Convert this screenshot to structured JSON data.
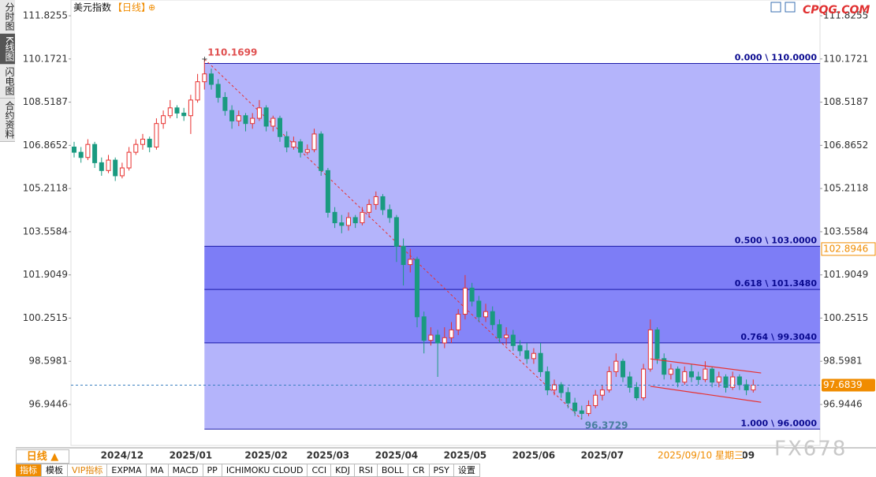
{
  "header": {
    "title": "美元指数",
    "period": "【日线】",
    "icon": "⊕",
    "site": "CPQG.COM",
    "watermark": "FX678"
  },
  "sidebar": [
    "分时图",
    "K线图",
    "闪电图",
    "合约资料"
  ],
  "toolbar": {
    "tab": "日线 ▲",
    "items": [
      "指标",
      "模板",
      "VIP指标",
      "EXPMA",
      "MA",
      "MACD",
      "PP",
      "ICHIMOKU CLOUD",
      "CCI",
      "KDJ",
      "RSI",
      "BOLL",
      "CR",
      "PSY",
      "设置"
    ]
  },
  "chart_data": {
    "type": "candlestick",
    "up_color": "#e8302e",
    "down_color": "#1a9a80",
    "ylim": [
      95.375,
      112.188
    ],
    "yticks": [
      111.8255,
      110.1721,
      108.5187,
      106.8652,
      105.2118,
      103.5584,
      101.9049,
      100.2515,
      98.5981,
      96.9446
    ],
    "marker_price": 102.8946,
    "crosshair_date": "2025/09/10 星期三",
    "categories": [
      null,
      null,
      null,
      null,
      null,
      null,
      null,
      "2024/12",
      null,
      null,
      null,
      null,
      null,
      null,
      null,
      null,
      null,
      "2025/01",
      null,
      null,
      null,
      null,
      null,
      null,
      null,
      null,
      null,
      null,
      "2025/02",
      null,
      null,
      null,
      null,
      null,
      null,
      null,
      null,
      "2025/03",
      null,
      null,
      null,
      null,
      null,
      null,
      null,
      null,
      null,
      "2025/04",
      null,
      null,
      null,
      null,
      null,
      null,
      null,
      null,
      null,
      "2025/05",
      null,
      null,
      null,
      null,
      null,
      null,
      null,
      null,
      null,
      "2025/06",
      null,
      null,
      null,
      null,
      null,
      null,
      null,
      null,
      null,
      "2025/07",
      null,
      null,
      null,
      null,
      null,
      null,
      null,
      null,
      null,
      null,
      null,
      null,
      null,
      null,
      null,
      null,
      null,
      null,
      null,
      null,
      "/09",
      null
    ],
    "ohlc": [
      [
        106.8,
        107.0,
        106.4,
        106.6
      ],
      [
        106.6,
        106.8,
        106.2,
        106.4
      ],
      [
        106.4,
        107.1,
        106.3,
        106.9
      ],
      [
        106.9,
        107.0,
        106.0,
        106.2
      ],
      [
        106.2,
        106.4,
        105.7,
        105.9
      ],
      [
        105.9,
        106.5,
        105.8,
        106.3
      ],
      [
        106.3,
        106.4,
        105.5,
        105.7
      ],
      [
        105.7,
        106.2,
        105.6,
        106.0
      ],
      [
        106.0,
        106.8,
        105.9,
        106.6
      ],
      [
        106.6,
        107.1,
        106.5,
        106.9
      ],
      [
        106.9,
        107.3,
        106.7,
        107.1
      ],
      [
        107.1,
        107.2,
        106.6,
        106.8
      ],
      [
        106.8,
        107.9,
        106.7,
        107.7
      ],
      [
        107.7,
        108.2,
        107.5,
        108.0
      ],
      [
        108.0,
        108.6,
        107.9,
        108.3
      ],
      [
        108.3,
        108.4,
        107.9,
        108.1
      ],
      [
        108.1,
        108.3,
        107.8,
        108.0
      ],
      [
        108.0,
        108.8,
        107.3,
        108.6
      ],
      [
        108.6,
        109.6,
        108.5,
        109.3
      ],
      [
        109.3,
        110.1699,
        109.0,
        109.6
      ],
      [
        109.6,
        109.8,
        109.0,
        109.2
      ],
      [
        109.2,
        109.4,
        108.5,
        108.7
      ],
      [
        108.7,
        108.9,
        108.0,
        108.2
      ],
      [
        108.2,
        108.4,
        107.5,
        107.8
      ],
      [
        107.8,
        108.2,
        107.6,
        108.0
      ],
      [
        108.0,
        108.1,
        107.4,
        107.7
      ],
      [
        107.7,
        108.1,
        107.5,
        107.9
      ],
      [
        107.9,
        108.6,
        107.8,
        108.3
      ],
      [
        108.3,
        108.4,
        107.4,
        107.6
      ],
      [
        107.6,
        108.0,
        107.4,
        107.9
      ],
      [
        107.9,
        108.0,
        107.0,
        107.2
      ],
      [
        107.2,
        107.4,
        106.6,
        106.8
      ],
      [
        106.8,
        107.2,
        106.7,
        107.0
      ],
      [
        107.0,
        107.1,
        106.4,
        106.6
      ],
      [
        106.6,
        106.9,
        106.5,
        106.7
      ],
      [
        106.7,
        107.5,
        106.6,
        107.3
      ],
      [
        107.3,
        107.4,
        105.7,
        105.9
      ],
      [
        105.9,
        106.0,
        104.1,
        104.3
      ],
      [
        104.3,
        104.5,
        103.7,
        103.9
      ],
      [
        103.9,
        104.2,
        103.5,
        103.8
      ],
      [
        103.8,
        104.3,
        103.6,
        104.1
      ],
      [
        104.1,
        104.2,
        103.7,
        103.9
      ],
      [
        103.9,
        104.5,
        103.8,
        104.3
      ],
      [
        104.3,
        104.8,
        104.1,
        104.6
      ],
      [
        104.6,
        105.1,
        104.4,
        104.9
      ],
      [
        104.9,
        105.0,
        104.2,
        104.4
      ],
      [
        104.4,
        104.6,
        103.9,
        104.1
      ],
      [
        104.1,
        104.2,
        102.4,
        103.0
      ],
      [
        103.0,
        103.3,
        101.5,
        102.3
      ],
      [
        102.3,
        102.9,
        102.0,
        102.5
      ],
      [
        102.5,
        102.6,
        99.9,
        100.3
      ],
      [
        100.3,
        100.5,
        98.9,
        99.4
      ],
      [
        99.4,
        99.9,
        99.2,
        99.6
      ],
      [
        99.6,
        99.8,
        98.0,
        99.3
      ],
      [
        99.3,
        99.9,
        99.1,
        99.5
      ],
      [
        99.5,
        100.1,
        99.3,
        99.8
      ],
      [
        99.8,
        100.6,
        99.6,
        100.4
      ],
      [
        100.4,
        101.9,
        100.2,
        101.4
      ],
      [
        101.4,
        101.6,
        100.7,
        100.9
      ],
      [
        100.9,
        101.1,
        100.1,
        100.3
      ],
      [
        100.3,
        100.8,
        100.1,
        100.5
      ],
      [
        100.5,
        100.7,
        99.8,
        100.0
      ],
      [
        100.0,
        100.2,
        99.3,
        99.5
      ],
      [
        99.5,
        99.9,
        99.2,
        99.6
      ],
      [
        99.6,
        99.8,
        99.0,
        99.2
      ],
      [
        99.2,
        99.4,
        98.8,
        99.0
      ],
      [
        99.0,
        99.3,
        98.5,
        98.7
      ],
      [
        98.7,
        99.1,
        98.5,
        98.9
      ],
      [
        98.9,
        99.3,
        98.0,
        98.2
      ],
      [
        98.2,
        98.4,
        97.3,
        97.5
      ],
      [
        97.5,
        97.9,
        97.3,
        97.7
      ],
      [
        97.7,
        97.8,
        97.2,
        97.4
      ],
      [
        97.4,
        97.6,
        96.8,
        97.0
      ],
      [
        97.0,
        97.2,
        96.5,
        96.7
      ],
      [
        96.7,
        96.9,
        96.3729,
        96.6
      ],
      [
        96.6,
        97.1,
        96.5,
        96.9
      ],
      [
        96.9,
        97.5,
        96.8,
        97.3
      ],
      [
        97.3,
        97.7,
        97.1,
        97.5
      ],
      [
        97.5,
        98.4,
        97.4,
        98.2
      ],
      [
        98.2,
        98.9,
        98.0,
        98.6
      ],
      [
        98.6,
        98.7,
        97.8,
        98.0
      ],
      [
        98.0,
        98.2,
        97.4,
        97.6
      ],
      [
        97.6,
        97.8,
        97.1,
        97.2
      ],
      [
        97.2,
        98.5,
        97.1,
        98.3
      ],
      [
        98.3,
        100.2,
        98.2,
        99.8
      ],
      [
        99.8,
        99.9,
        98.5,
        98.7
      ],
      [
        98.7,
        98.9,
        97.9,
        98.1
      ],
      [
        98.1,
        98.5,
        97.9,
        98.3
      ],
      [
        98.3,
        98.4,
        97.6,
        97.8
      ],
      [
        97.8,
        98.4,
        97.7,
        98.2
      ],
      [
        98.2,
        98.5,
        97.8,
        98.0
      ],
      [
        98.0,
        98.2,
        97.7,
        97.9
      ],
      [
        97.9,
        98.6,
        97.8,
        98.3
      ],
      [
        98.3,
        98.4,
        97.6,
        97.8
      ],
      [
        97.8,
        98.2,
        97.6,
        98.0
      ],
      [
        98.0,
        98.1,
        97.4,
        97.6
      ],
      [
        97.6,
        98.2,
        97.5,
        98.0
      ],
      [
        98.0,
        98.1,
        97.5,
        97.7
      ],
      [
        97.7,
        97.9,
        97.3,
        97.5
      ],
      [
        97.5,
        97.9,
        97.4,
        97.6839
      ]
    ],
    "fib": [
      {
        "label": "0.000 \\ 110.0000",
        "value": 110
      },
      {
        "label": "0.500 \\ 103.0000",
        "value": 103
      },
      {
        "label": "0.618 \\ 101.3480",
        "value": 101.348
      },
      {
        "label": "0.764 \\ 99.3040",
        "value": 99.304
      },
      {
        "label": "1.000 \\ 96.0000",
        "value": 96
      }
    ],
    "channel": {
      "upper": [
        98.69,
        98.15
      ],
      "lower": [
        97.64,
        97.03
      ]
    }
  }
}
